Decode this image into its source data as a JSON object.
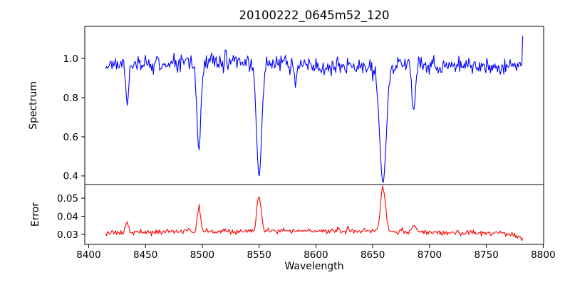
{
  "chart_data": {
    "type": "line",
    "title": "20100222_0645m52_120",
    "xlabel": "Wavelength",
    "xlim": [
      8396.6,
      8800.4
    ],
    "xticks": [
      8400,
      8450,
      8500,
      8550,
      8600,
      8650,
      8700,
      8750,
      8800
    ],
    "xtick_labels": [
      "8400",
      "8450",
      "8500",
      "8550",
      "8600",
      "8650",
      "8700",
      "8750",
      "8800"
    ],
    "x_range": [
      8415,
      8782
    ],
    "n_points": 465,
    "random_seed": 11,
    "legend": "none",
    "grid": false,
    "panels": [
      {
        "name": "spectrum",
        "ylabel": "Spectrum",
        "color": "#0000ff",
        "ylim": [
          0.356,
          1.164
        ],
        "yticks": [
          0.4,
          0.6,
          0.8,
          1.0
        ],
        "ytick_labels": [
          "0.4",
          "0.6",
          "0.8",
          "1.0"
        ],
        "continuum": 0.968,
        "noise_sigma": 0.021,
        "absorption_lines": [
          {
            "center": 8434,
            "depth": 0.2,
            "sigma": 1.1
          },
          {
            "center": 8497,
            "depth": 0.45,
            "sigma": 1.7
          },
          {
            "center": 8550,
            "depth": 0.58,
            "sigma": 2.3
          },
          {
            "center": 8582,
            "depth": 0.1,
            "sigma": 1.2
          },
          {
            "center": 8659,
            "depth": 0.6,
            "sigma": 2.9
          },
          {
            "center": 8686,
            "depth": 0.23,
            "sigma": 1.5
          }
        ],
        "end_spike_value": 1.116
      },
      {
        "name": "error",
        "ylabel": "Error",
        "color": "#ff0000",
        "ylim": [
          0.0245,
          0.0575
        ],
        "yticks": [
          0.03,
          0.04,
          0.05
        ],
        "ytick_labels": [
          "0.03",
          "0.04",
          "0.05"
        ],
        "baseline": 0.0313,
        "noise_sigma": 0.00075,
        "peaks": [
          {
            "center": 8434,
            "height": 0.0055,
            "sigma": 1.2
          },
          {
            "center": 8497,
            "height": 0.014,
            "sigma": 1.4
          },
          {
            "center": 8550,
            "height": 0.0195,
            "sigma": 1.9
          },
          {
            "center": 8659,
            "height": 0.0245,
            "sigma": 2.1
          },
          {
            "center": 8686,
            "height": 0.003,
            "sigma": 1.5
          }
        ],
        "end_dip": -0.003
      }
    ]
  }
}
